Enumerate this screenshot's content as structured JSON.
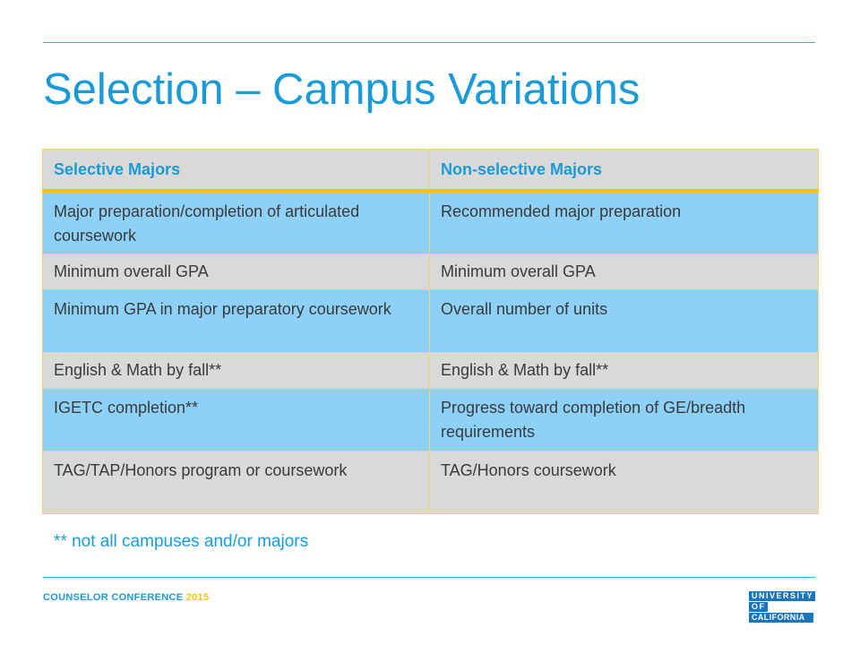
{
  "slide": {
    "title": "Selection – Campus Variations",
    "table": {
      "headers": [
        "Selective Majors",
        "Non-selective Majors"
      ],
      "rows": [
        [
          "Major preparation/completion of articulated coursework",
          "Recommended major preparation"
        ],
        [
          "Minimum overall GPA",
          "Minimum overall GPA"
        ],
        [
          "Minimum GPA in major preparatory coursework",
          "Overall number of units"
        ],
        [
          "English & Math by fall**",
          "English & Math by fall**"
        ],
        [
          "IGETC completion**",
          "Progress toward completion of GE/breadth requirements"
        ],
        [
          "TAG/TAP/Honors program or coursework",
          "TAG/Honors coursework"
        ]
      ]
    },
    "footnote": "** not all campuses and/or majors"
  },
  "footer": {
    "conference": "COUNSELOR CONFERENCE",
    "year": "2015"
  },
  "logo": {
    "line1": "UNIVERSITY",
    "line2": "OF",
    "line3": "CALIFORNIA"
  },
  "colors": {
    "accent_blue": "#1a9bd7",
    "row_blue": "#8dd0f8",
    "row_gray": "#d9d9d9",
    "gold": "#ffc20e",
    "logo_blue": "#1a75bc"
  }
}
